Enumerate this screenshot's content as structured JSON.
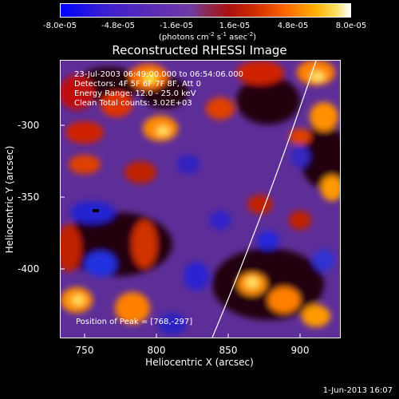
{
  "colorbar": {
    "ticks": [
      "-8.0e-05",
      "-4.8e-05",
      "-1.6e-05",
      "1.6e-05",
      "4.8e-05",
      "8.0e-05"
    ],
    "unit_prefix": "(photons cm",
    "unit_sup1": "-2",
    "unit_mid": " s",
    "unit_sup2": "-1",
    "unit_mid2": " asec",
    "unit_sup3": "-2",
    "unit_suffix": ")"
  },
  "title": "Reconstructed RHESSI Image",
  "info": {
    "time": "23-Jul-2003 06:49:00.000 to 06:54:06.000",
    "detectors": "Detectors: 4F 5F 6F 7F 8F, Att 0",
    "energy": "Energy Range: 12.0 - 25.0 keV",
    "clean": "Clean     Total counts: 3.02E+03"
  },
  "peak": "Position of Peak = [768,-297]",
  "axes": {
    "xlabel": "Heliocentric X (arcsec)",
    "ylabel": "Heliocentric Y (arcsec)",
    "xticks": [
      "750",
      "800",
      "850",
      "900"
    ],
    "yticks": [
      "-300",
      "-350",
      "-400"
    ]
  },
  "timestamp": "1-Jun-2013 16:07",
  "colors": {
    "background": "#000000",
    "foreground": "#ffffff",
    "plot_base": "#5e2e98"
  }
}
